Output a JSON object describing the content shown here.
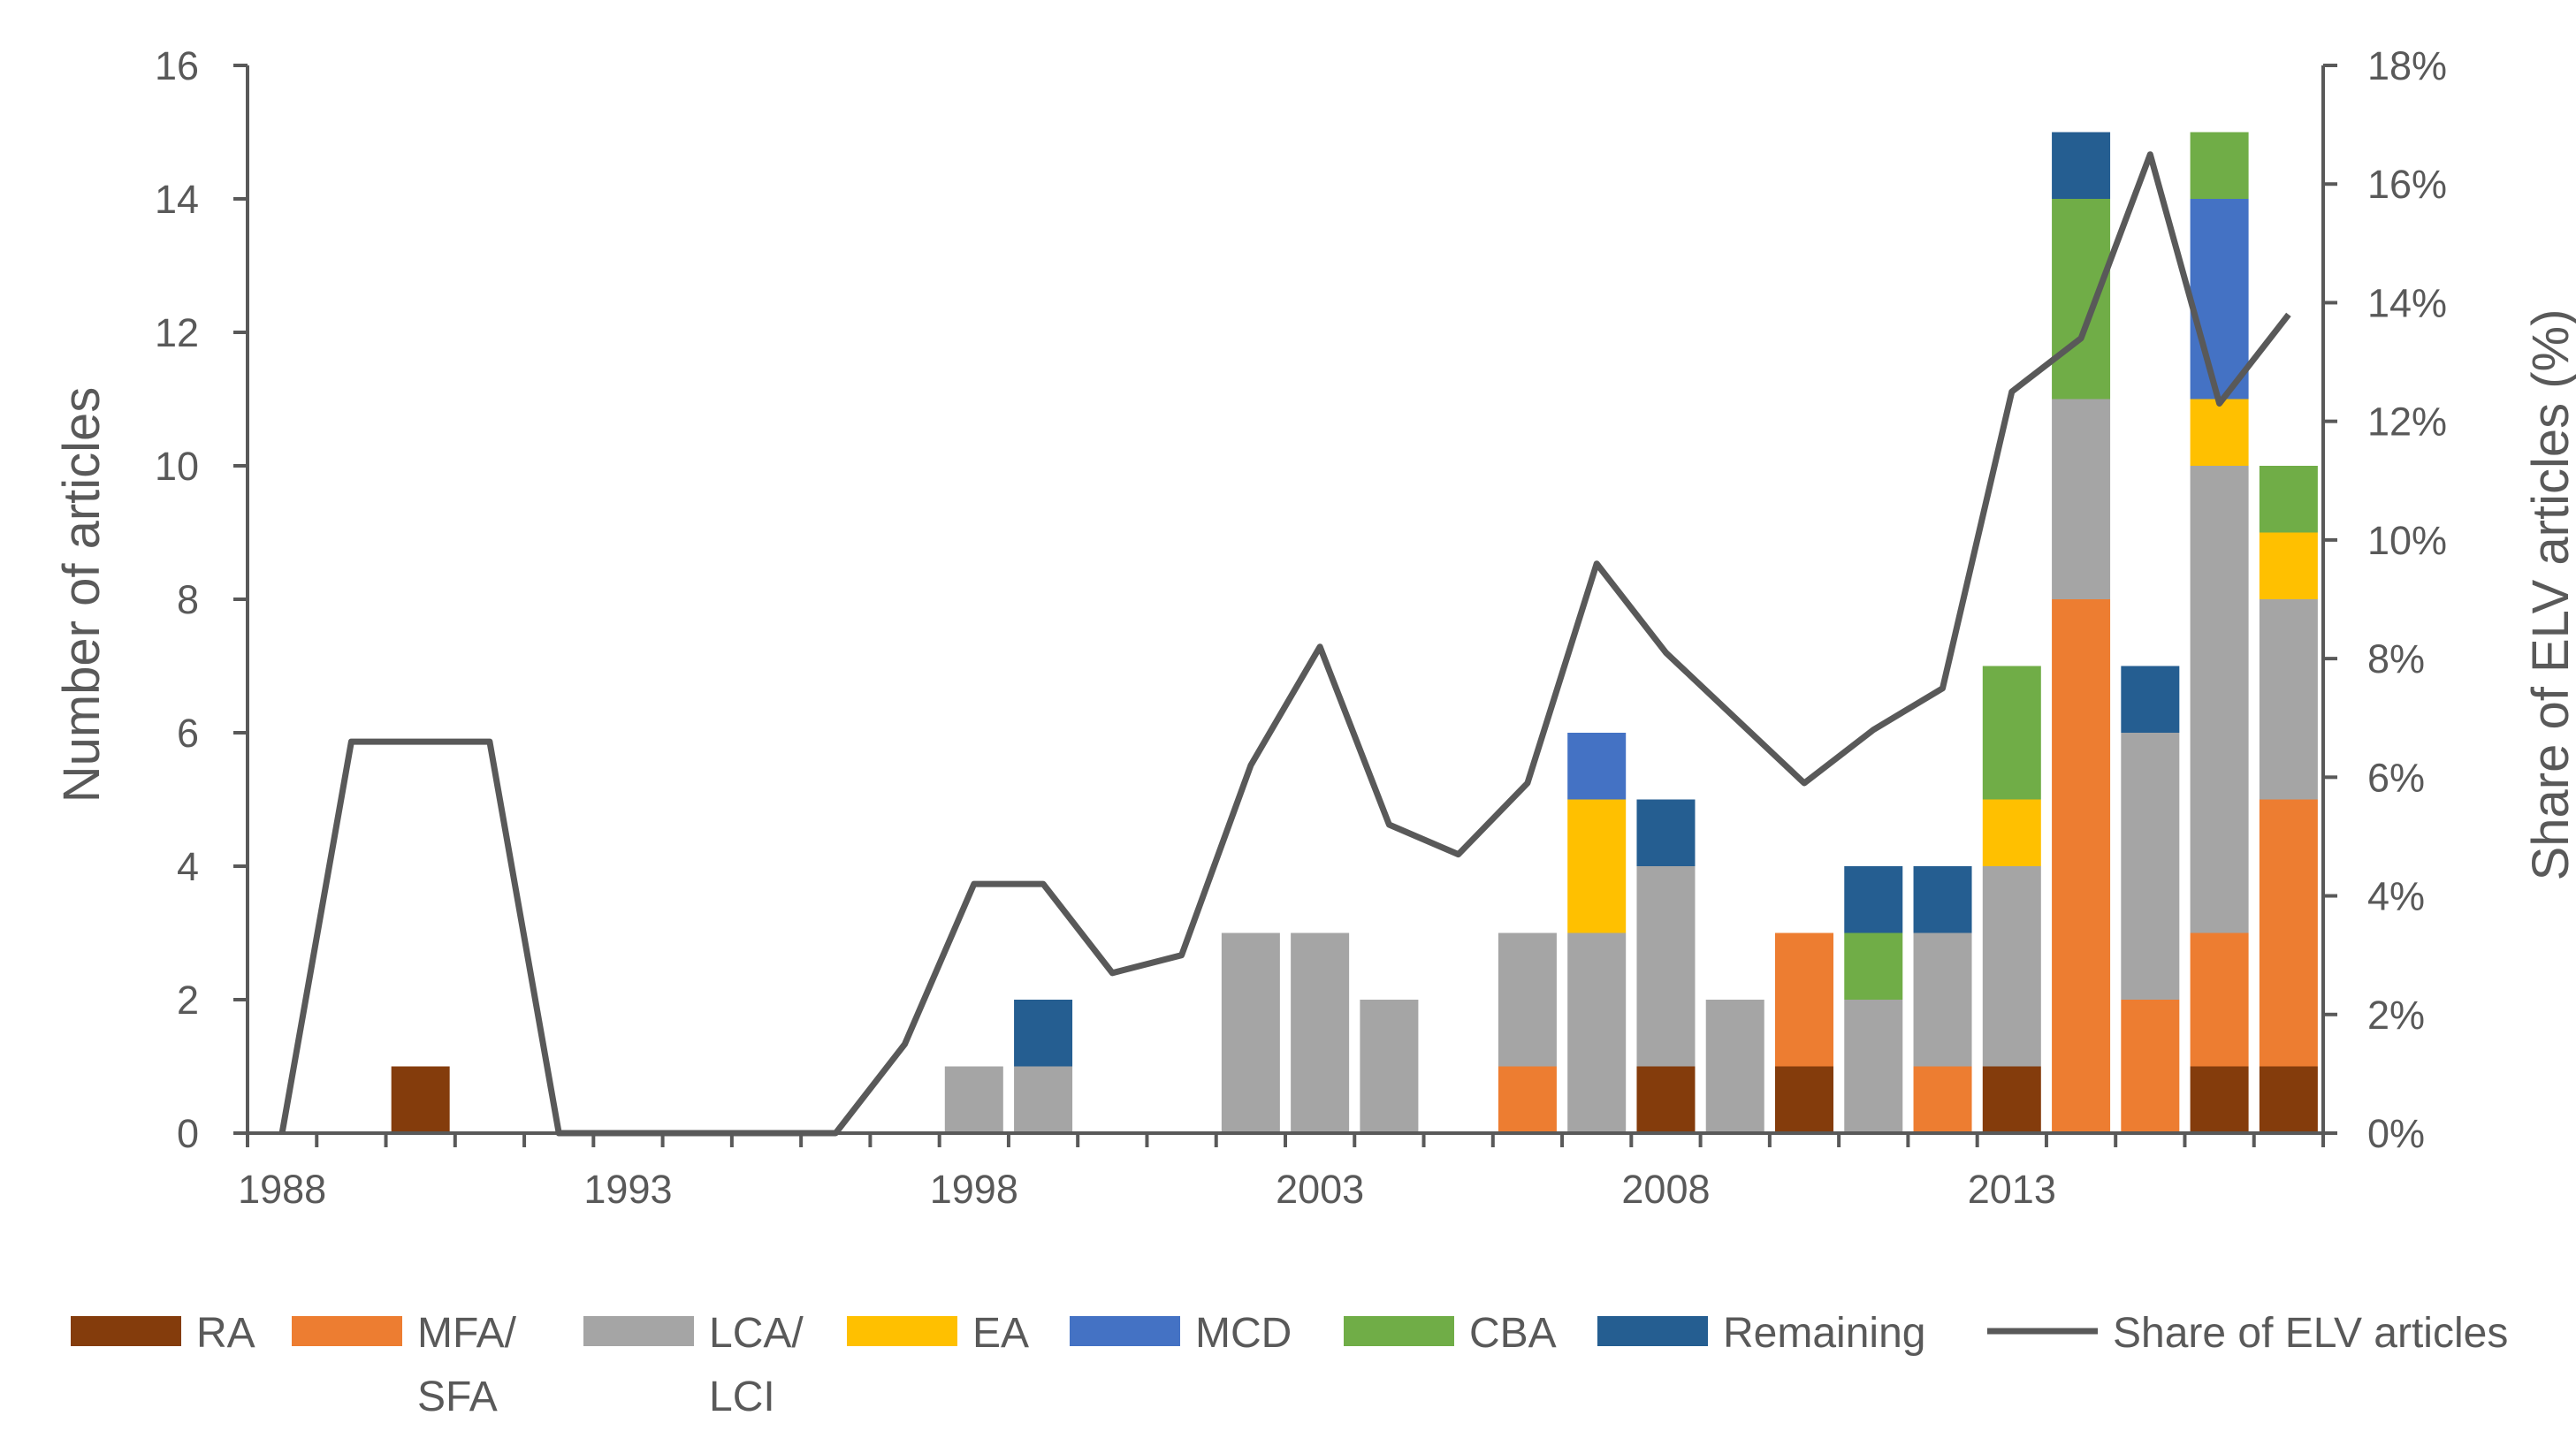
{
  "chart_data": {
    "type": "bar",
    "stacked": true,
    "title": "",
    "xlabel": "",
    "ylabel": "Number of articles",
    "y2label": "Share of ELV articles (%)",
    "ylim": [
      0,
      16
    ],
    "y2lim": [
      0,
      18
    ],
    "yticks": [
      0,
      2,
      4,
      6,
      8,
      10,
      12,
      14,
      16
    ],
    "y2ticks": [
      "0%",
      "2%",
      "4%",
      "6%",
      "8%",
      "10%",
      "12%",
      "14%",
      "16%",
      "18%"
    ],
    "xtick_labels": [
      {
        "year": 1988,
        "label": "1988"
      },
      {
        "year": 1993,
        "label": "1993"
      },
      {
        "year": 1998,
        "label": "1998"
      },
      {
        "year": 2003,
        "label": "2003"
      },
      {
        "year": 2008,
        "label": "2008"
      },
      {
        "year": 2013,
        "label": "2013"
      }
    ],
    "categories": [
      1988,
      1989,
      1990,
      1991,
      1992,
      1993,
      1994,
      1995,
      1996,
      1997,
      1998,
      1999,
      2000,
      2001,
      2002,
      2003,
      2004,
      2005,
      2006,
      2007,
      2008,
      2009,
      2010,
      2011,
      2012,
      2013,
      2014,
      2015,
      2016,
      2017
    ],
    "series": [
      {
        "name": "RA",
        "color": "#843C0C",
        "values": [
          0,
          0,
          1,
          0,
          0,
          0,
          0,
          0,
          0,
          0,
          0,
          0,
          0,
          0,
          0,
          0,
          0,
          0,
          0,
          0,
          1,
          0,
          1,
          0,
          0,
          1,
          0,
          0,
          1,
          1
        ]
      },
      {
        "name": "MFA/ SFA",
        "color": "#ED7D31",
        "values": [
          0,
          0,
          0,
          0,
          0,
          0,
          0,
          0,
          0,
          0,
          0,
          0,
          0,
          0,
          0,
          0,
          0,
          0,
          1,
          0,
          0,
          0,
          2,
          0,
          1,
          0,
          8,
          2,
          2,
          4
        ]
      },
      {
        "name": "LCA/ LCI",
        "color": "#A5A5A5",
        "values": [
          0,
          0,
          0,
          0,
          0,
          0,
          0,
          0,
          0,
          0,
          1,
          1,
          0,
          0,
          3,
          3,
          2,
          0,
          2,
          3,
          3,
          2,
          0,
          2,
          2,
          3,
          3,
          4,
          7,
          3
        ]
      },
      {
        "name": "EA",
        "color": "#FFC000",
        "values": [
          0,
          0,
          0,
          0,
          0,
          0,
          0,
          0,
          0,
          0,
          0,
          0,
          0,
          0,
          0,
          0,
          0,
          0,
          0,
          2,
          0,
          0,
          0,
          0,
          0,
          1,
          0,
          0,
          1,
          1
        ]
      },
      {
        "name": "MCD",
        "color": "#4472C4",
        "values": [
          0,
          0,
          0,
          0,
          0,
          0,
          0,
          0,
          0,
          0,
          0,
          0,
          0,
          0,
          0,
          0,
          0,
          0,
          0,
          1,
          0,
          0,
          0,
          0,
          0,
          0,
          0,
          0,
          3,
          0
        ]
      },
      {
        "name": "CBA",
        "color": "#70AD47",
        "values": [
          0,
          0,
          0,
          0,
          0,
          0,
          0,
          0,
          0,
          0,
          0,
          0,
          0,
          0,
          0,
          0,
          0,
          0,
          0,
          0,
          0,
          0,
          0,
          1,
          0,
          2,
          3,
          0,
          1,
          1
        ]
      },
      {
        "name": "Remaining",
        "color": "#255E91",
        "values": [
          0,
          0,
          0,
          0,
          0,
          0,
          0,
          0,
          0,
          0,
          0,
          1,
          0,
          0,
          0,
          0,
          0,
          0,
          0,
          0,
          1,
          0,
          0,
          1,
          1,
          0,
          1,
          1,
          0,
          0
        ]
      }
    ],
    "line_series": {
      "name": "Share of ELV articles",
      "color": "#595959",
      "axis": "right",
      "values": [
        0,
        6.6,
        6.6,
        6.6,
        0,
        0,
        0,
        0,
        0,
        1.5,
        4.2,
        4.2,
        2.7,
        3.0,
        6.2,
        8.2,
        5.2,
        4.7,
        5.9,
        9.6,
        8.1,
        7.0,
        5.9,
        6.8,
        7.5,
        12.5,
        13.4,
        16.5,
        12.3,
        13.8
      ]
    },
    "legend": {
      "position": "bottom",
      "items": [
        {
          "key": "RA",
          "line1": "RA",
          "line2": "",
          "kind": "box"
        },
        {
          "key": "MFA",
          "line1": "MFA/",
          "line2": "SFA",
          "kind": "box"
        },
        {
          "key": "LCA",
          "line1": "LCA/",
          "line2": "LCI",
          "kind": "box"
        },
        {
          "key": "EA",
          "line1": "EA",
          "line2": "",
          "kind": "box"
        },
        {
          "key": "MCD",
          "line1": "MCD",
          "line2": "",
          "kind": "box"
        },
        {
          "key": "CBA",
          "line1": "CBA",
          "line2": "",
          "kind": "box"
        },
        {
          "key": "Remaining",
          "line1": "Remaining",
          "line2": "",
          "kind": "box"
        },
        {
          "key": "Share",
          "line1": "Share of ELV articles",
          "line2": "",
          "kind": "line"
        }
      ]
    }
  }
}
